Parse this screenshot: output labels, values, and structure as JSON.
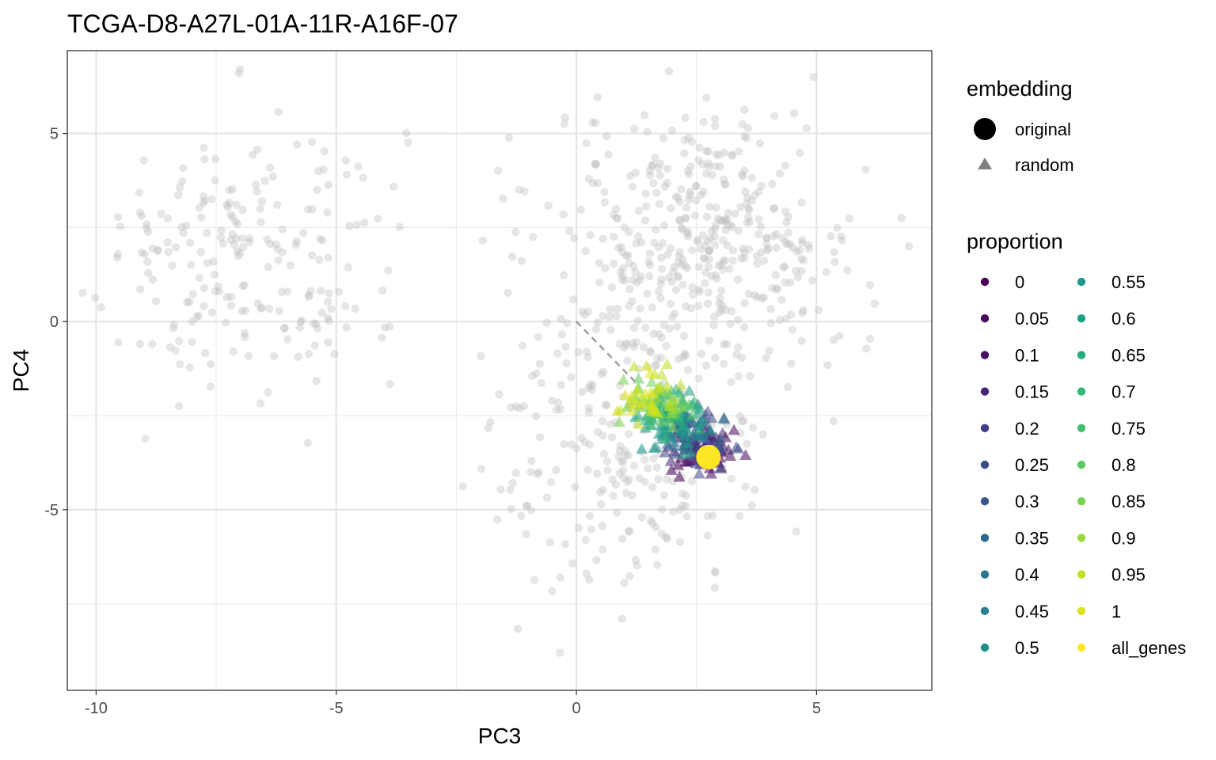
{
  "chart_data": {
    "type": "scatter",
    "title": "TCGA-D8-A27L-01A-11R-A16F-07",
    "xlabel": "PC3",
    "ylabel": "PC4",
    "xlim": [
      -10.6,
      7.4
    ],
    "ylim": [
      -9.8,
      7.2
    ],
    "x_ticks": [
      -10,
      -5,
      0,
      5
    ],
    "x_tick_labels": [
      "-10",
      "-5",
      "0",
      "5"
    ],
    "y_ticks": [
      -5,
      0,
      5
    ],
    "y_tick_labels": [
      "-5",
      "0",
      "5"
    ],
    "x_minor_ticks": [
      -7.5,
      -2.5,
      2.5
    ],
    "y_minor_ticks": [
      -7.5,
      -2.5,
      2.5
    ],
    "grid": true,
    "legend_position": "right",
    "legend": {
      "embedding_title": "embedding",
      "embedding_items": [
        {
          "label": "original",
          "shape": "circle"
        },
        {
          "label": "random",
          "shape": "triangle"
        }
      ],
      "proportion_title": "proportion",
      "proportion_items": [
        {
          "label": "0",
          "color": "#440154"
        },
        {
          "label": "0.05",
          "color": "#46085c"
        },
        {
          "label": "0.1",
          "color": "#471063"
        },
        {
          "label": "0.15",
          "color": "#482576"
        },
        {
          "label": "0.2",
          "color": "#433e85"
        },
        {
          "label": "0.25",
          "color": "#3e4a89"
        },
        {
          "label": "0.3",
          "color": "#38588c"
        },
        {
          "label": "0.35",
          "color": "#31688e"
        },
        {
          "label": "0.4",
          "color": "#2b758e"
        },
        {
          "label": "0.45",
          "color": "#26828e"
        },
        {
          "label": "0.5",
          "color": "#21908c"
        },
        {
          "label": "0.55",
          "color": "#1f9a8a"
        },
        {
          "label": "0.6",
          "color": "#1fa187"
        },
        {
          "label": "0.65",
          "color": "#25ab82"
        },
        {
          "label": "0.7",
          "color": "#35b779"
        },
        {
          "label": "0.75",
          "color": "#44bf70"
        },
        {
          "label": "0.8",
          "color": "#5ec962"
        },
        {
          "label": "0.85",
          "color": "#7ad151"
        },
        {
          "label": "0.9",
          "color": "#9bd93c"
        },
        {
          "label": "0.95",
          "color": "#c2df23"
        },
        {
          "label": "1",
          "color": "#dde318"
        },
        {
          "label": "all_genes",
          "color": "#fde725"
        }
      ]
    },
    "original_point": {
      "x": 2.75,
      "y": -3.6,
      "proportion": "all_genes"
    },
    "segment": {
      "x1": 0,
      "y1": 0,
      "x2": 1.3,
      "y2": -1.7,
      "color": "#999999",
      "style": "dashed"
    },
    "background_color": "#bdbdbd",
    "background_points_approx_count": 900
  }
}
